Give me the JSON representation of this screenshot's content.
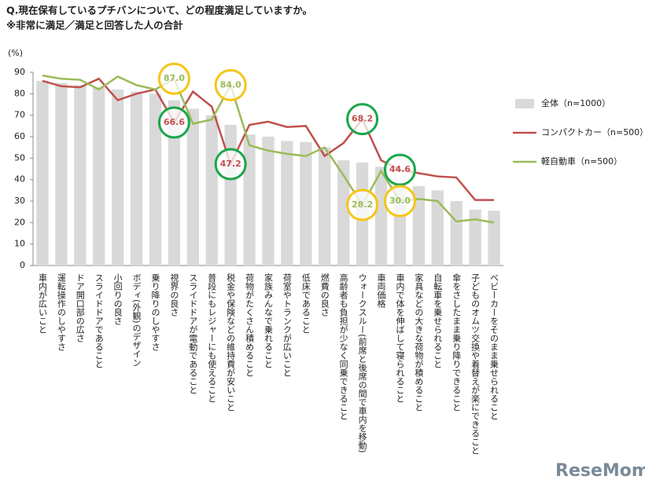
{
  "chart_data": {
    "type": "bar_line",
    "title": "Q.現在保有しているプチバンについて、どの程度満足していますか。",
    "subtitle": "※非常に満足／満足と回答した人の合計",
    "y_label": "(%)",
    "watermark": "ReseMom",
    "categories": [
      "車内が広いこと",
      "運転操作のしやすさ",
      "ドア開口部の広さ",
      "スライドドアであること",
      "小回りの良さ",
      "ボディ(外観)のデザイン",
      "乗り降りのしやすさ",
      "視界の良さ",
      "スライドドアが電動であること",
      "普段にもレジャーにも使えること",
      "税金や保険などの維持費が安いこと",
      "荷物がたくさん積めること",
      "家族みんなで乗れること",
      "荷室やトランクが広いこと",
      "低床であること",
      "燃費の良さ",
      "高齢者も負担が少なく同乗できること",
      "ウォークスルー(前席と後席の間で車内を移動)",
      "車両価格",
      "車内で体を伸ばして寝られること",
      "家具などの大きな荷物が積めること",
      "自転車を乗せられること",
      "傘をさしたまま乗り降りできること",
      "子どものオムツ交換や着替えが楽にできること",
      "ベビーカーをそのまま乗せられること"
    ],
    "series": [
      {
        "name": "全体（n=1000）",
        "kind": "bar",
        "color": "#d9d9d9",
        "values": [
          86,
          85,
          84,
          83,
          82,
          81,
          80,
          77,
          73,
          70,
          65.5,
          61,
          60,
          58,
          57.5,
          55,
          49,
          48,
          46,
          38,
          37,
          35,
          30,
          26,
          25.5
        ]
      },
      {
        "name": "コンパクトカー（n=500）",
        "kind": "line",
        "color": "#c0504d",
        "label_circle_color": "#1aa64a",
        "values": [
          86,
          83.5,
          83,
          87,
          77,
          80,
          82,
          66.6,
          81,
          74,
          47.2,
          65.5,
          67,
          64.5,
          65,
          51,
          57,
          68.2,
          49,
          44.6,
          43,
          41.5,
          41,
          30.5,
          30.5
        ],
        "value_labels": [
          null,
          null,
          null,
          null,
          null,
          null,
          null,
          "66.6",
          null,
          null,
          "47.2",
          null,
          null,
          null,
          null,
          null,
          null,
          "68.2",
          null,
          "44.6",
          null,
          null,
          null,
          null,
          null
        ]
      },
      {
        "name": "軽自動車（n=500）",
        "kind": "line",
        "color": "#9bbb59",
        "label_circle_color": "#f5c518",
        "values": [
          88.5,
          87,
          86.5,
          82,
          88,
          84,
          82,
          87.0,
          66,
          68,
          84.0,
          56,
          53.5,
          52,
          51,
          55,
          42,
          28.2,
          44,
          30.0,
          31,
          30,
          20.5,
          21.5,
          20
        ],
        "value_labels": [
          null,
          null,
          null,
          null,
          null,
          null,
          null,
          "87.0",
          null,
          null,
          "84.0",
          null,
          null,
          null,
          null,
          null,
          null,
          "28.2",
          null,
          "30.0",
          null,
          null,
          null,
          null,
          null
        ]
      }
    ],
    "ylim": [
      0,
      90
    ],
    "yticks": [
      0,
      10,
      20,
      30,
      40,
      50,
      60,
      70,
      80,
      90
    ],
    "grid": false
  }
}
